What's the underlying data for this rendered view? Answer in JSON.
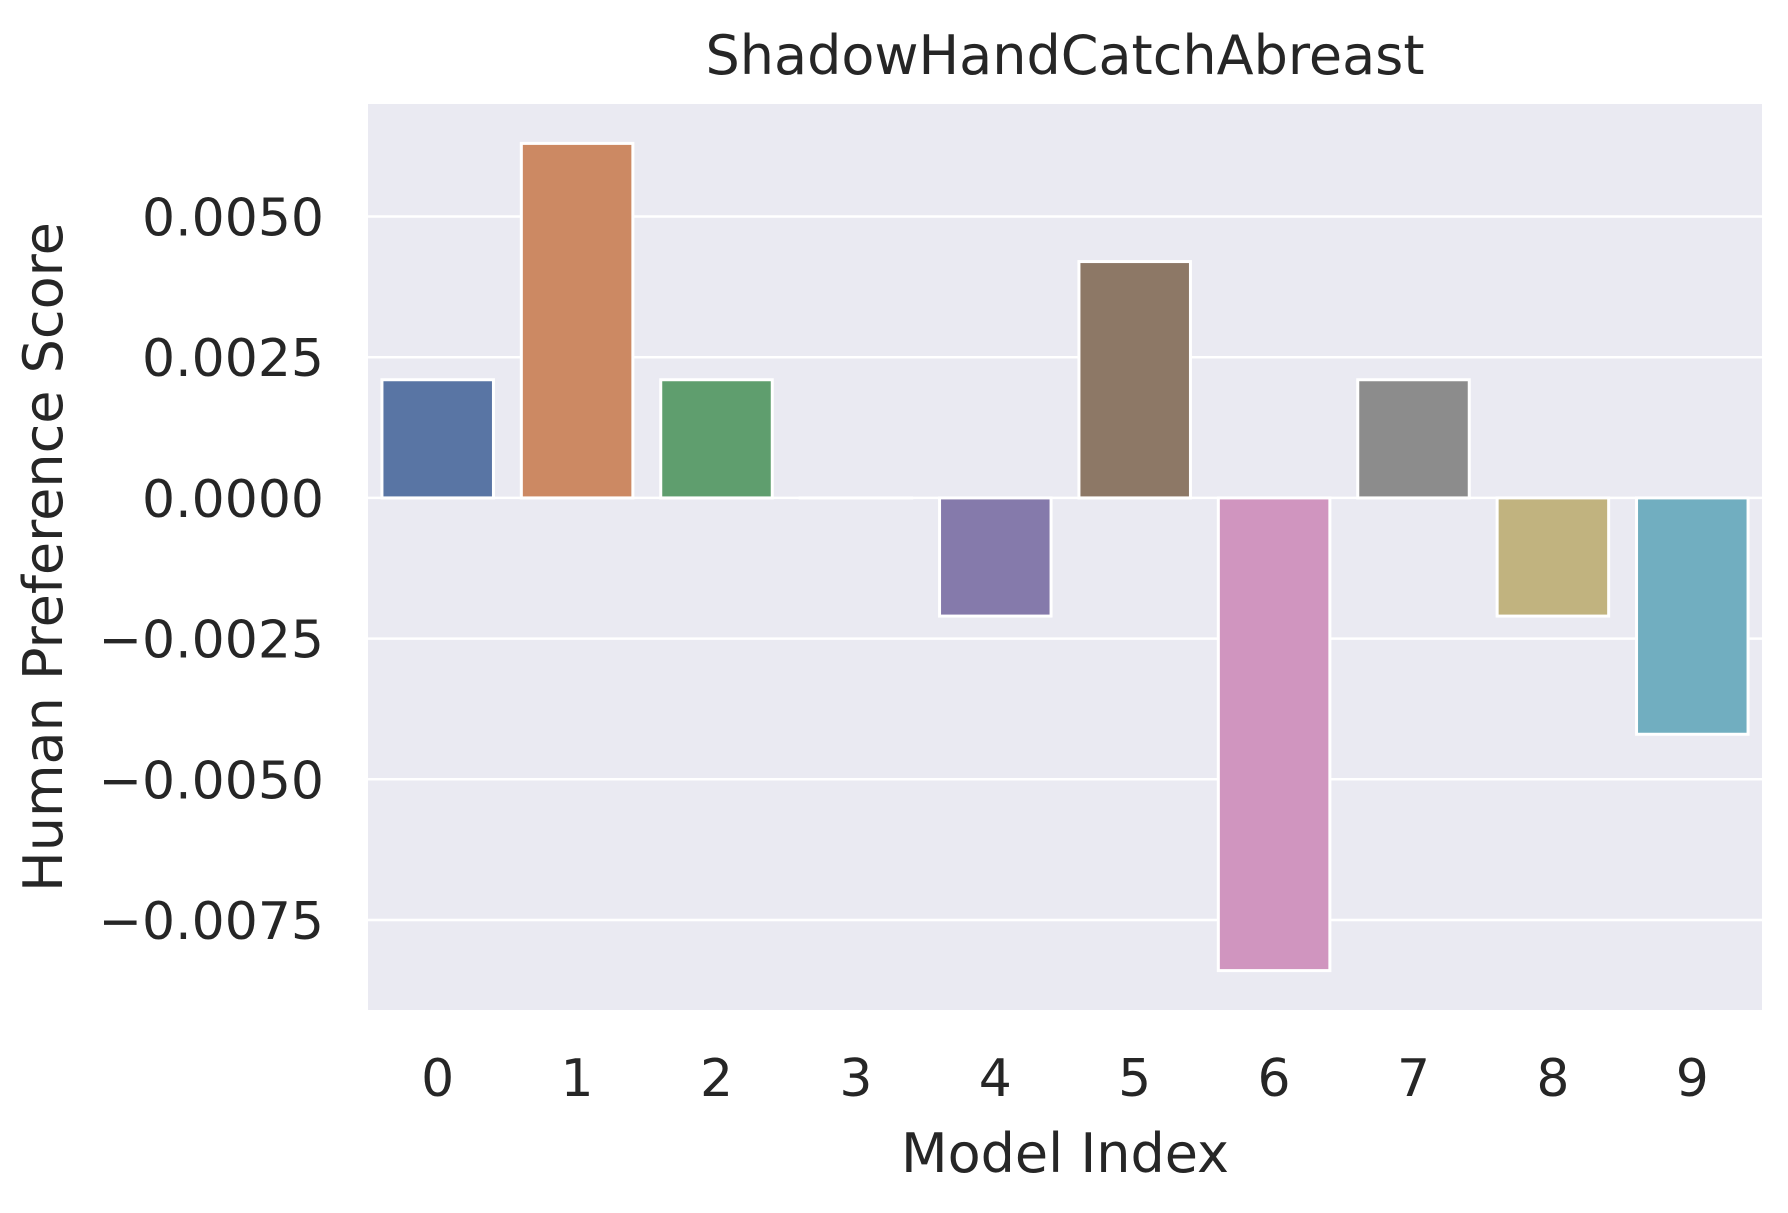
{
  "chart_data": {
    "type": "bar",
    "title": "ShadowHandCatchAbreast",
    "xlabel": "Model Index",
    "ylabel": "Human Preference Score",
    "categories": [
      "0",
      "1",
      "2",
      "3",
      "4",
      "5",
      "6",
      "7",
      "8",
      "9"
    ],
    "values": [
      0.0021,
      0.0063,
      0.0021,
      0.0,
      -0.0021,
      0.0042,
      -0.0084,
      0.0021,
      -0.0021,
      -0.0042
    ],
    "colors": [
      "#5975a4",
      "#cc8963",
      "#5f9e6e",
      "#b55d60",
      "#857aab",
      "#8d7866",
      "#d095bf",
      "#8c8c8c",
      "#c1b37f",
      "#71aec0"
    ],
    "ylim": [
      -0.0091,
      0.007
    ],
    "yticks": [
      0.005,
      0.0025,
      0.0,
      -0.0025,
      -0.005,
      -0.0075
    ],
    "ytick_labels": [
      "0.0050",
      "0.0025",
      "0.0000",
      "−0.0025",
      "−0.0050",
      "−0.0075"
    ],
    "grid": true,
    "background_color": "#eaeaf2",
    "grid_color": "#ffffff"
  }
}
